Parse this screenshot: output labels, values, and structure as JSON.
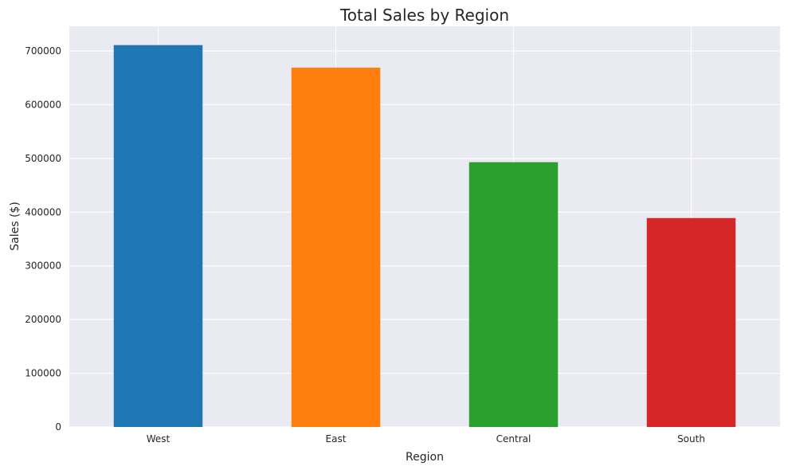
{
  "chart_data": {
    "type": "bar",
    "title": "Total Sales by Region",
    "xlabel": "Region",
    "ylabel": "Sales ($)",
    "categories": [
      "West",
      "East",
      "Central",
      "South"
    ],
    "values": [
      711000,
      669000,
      493000,
      389000
    ],
    "colors": [
      "#1f77b4",
      "#ff7f0e",
      "#2ca02c",
      "#d62728"
    ],
    "ylim": [
      0,
      746000
    ],
    "yticks": [
      0,
      100000,
      200000,
      300000,
      400000,
      500000,
      600000,
      700000
    ],
    "ytick_labels": [
      "0",
      "100000",
      "200000",
      "300000",
      "400000",
      "500000",
      "600000",
      "700000"
    ],
    "grid": true,
    "background": "#eaeaf2",
    "legend": "none"
  }
}
